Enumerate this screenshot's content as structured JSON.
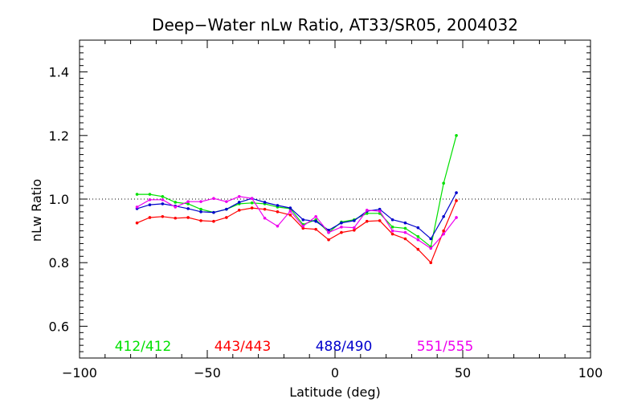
{
  "chart_data": {
    "type": "line",
    "title": "Deep−Water nLw Ratio, AT33/SR05, 2004032",
    "xlabel": "Latitude (deg)",
    "ylabel": "nLw Ratio",
    "xlim": [
      -100,
      100
    ],
    "ylim": [
      0.5,
      1.5
    ],
    "xticks": [
      -100,
      -50,
      0,
      50,
      100
    ],
    "xtick_labels": [
      "−100",
      "−50",
      "0",
      "50",
      "100"
    ],
    "yticks": [
      0.6,
      0.8,
      1.0,
      1.2,
      1.4
    ],
    "ytick_labels": [
      "0.6",
      "0.8",
      "1.0",
      "1.2",
      "1.4"
    ],
    "reference_line": 1.0,
    "grid": false,
    "legend_placement": "bottom",
    "x": [
      -77.5,
      -72.5,
      -67.5,
      -62.5,
      -57.5,
      -52.5,
      -47.5,
      -42.5,
      -37.5,
      -32.5,
      -27.5,
      -22.5,
      -17.5,
      -12.5,
      -7.5,
      -2.5,
      2.5,
      7.5,
      12.5,
      17.5,
      22.5,
      27.5,
      32.5,
      37.5,
      42.5,
      47.5
    ],
    "series": [
      {
        "name": "412/412",
        "color": "#00e000",
        "values": [
          1.015,
          1.015,
          1.008,
          0.99,
          0.985,
          0.968,
          0.958,
          0.968,
          0.985,
          0.988,
          0.985,
          0.975,
          0.97,
          0.92,
          0.935,
          0.895,
          0.928,
          0.935,
          0.955,
          0.955,
          0.912,
          0.908,
          0.882,
          0.85,
          1.05,
          1.2
        ]
      },
      {
        "name": "443/443",
        "color": "#ff0000",
        "values": [
          0.925,
          0.942,
          0.945,
          0.94,
          0.942,
          0.932,
          0.93,
          0.942,
          0.965,
          0.972,
          0.968,
          0.96,
          0.95,
          0.908,
          0.905,
          0.872,
          0.895,
          0.902,
          0.93,
          0.932,
          0.89,
          0.875,
          0.842,
          0.8,
          0.9,
          0.995
        ]
      },
      {
        "name": "488/490",
        "color": "#0000cc",
        "values": [
          0.97,
          0.982,
          0.985,
          0.978,
          0.97,
          0.96,
          0.958,
          0.968,
          0.99,
          1.002,
          0.99,
          0.98,
          0.972,
          0.935,
          0.93,
          0.902,
          0.925,
          0.932,
          0.962,
          0.968,
          0.935,
          0.925,
          0.91,
          0.875,
          0.945,
          1.02
        ]
      },
      {
        "name": "551/555",
        "color": "#ee00ee",
        "values": [
          0.975,
          0.998,
          0.998,
          0.975,
          0.992,
          0.992,
          1.002,
          0.992,
          1.008,
          1.002,
          0.94,
          0.915,
          0.962,
          0.915,
          0.945,
          0.895,
          0.912,
          0.91,
          0.965,
          0.962,
          0.9,
          0.895,
          0.872,
          0.845,
          0.89,
          0.942
        ]
      }
    ]
  }
}
